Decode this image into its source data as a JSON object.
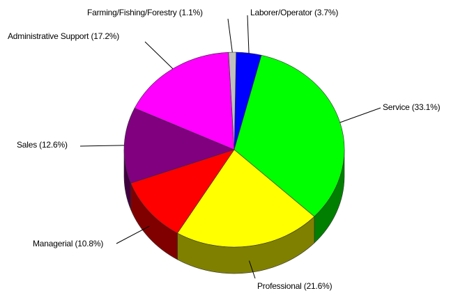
{
  "chart_data": {
    "type": "pie",
    "title": "",
    "style": "3d",
    "slices": [
      {
        "label": "Laborer/Operator",
        "value": 3.7,
        "text": "Laborer/Operator (3.7%)",
        "color": "#0000FF",
        "side_color": "#00007F"
      },
      {
        "label": "Service",
        "value": 33.1,
        "text": "Service (33.1%)",
        "color": "#00FF00",
        "side_color": "#007F00"
      },
      {
        "label": "Professional",
        "value": 21.6,
        "text": "Professional (21.6%)",
        "color": "#FFFF00",
        "side_color": "#808000"
      },
      {
        "label": "Managerial",
        "value": 10.8,
        "text": "Managerial (10.8%)",
        "color": "#FF0000",
        "side_color": "#800000"
      },
      {
        "label": "Sales",
        "value": 12.6,
        "text": "Sales (12.6%)",
        "color": "#800080",
        "side_color": "#400040"
      },
      {
        "label": "Administrative Support",
        "value": 17.2,
        "text": "Administrative Support (17.2%)",
        "color": "#FF00FF",
        "side_color": "#800080"
      },
      {
        "label": "Farming/Fishing/Forestry",
        "value": 1.1,
        "text": "Farming/Fishing/Forestry (1.1%)",
        "color": "#C0C0C0",
        "side_color": "#808080"
      }
    ]
  }
}
